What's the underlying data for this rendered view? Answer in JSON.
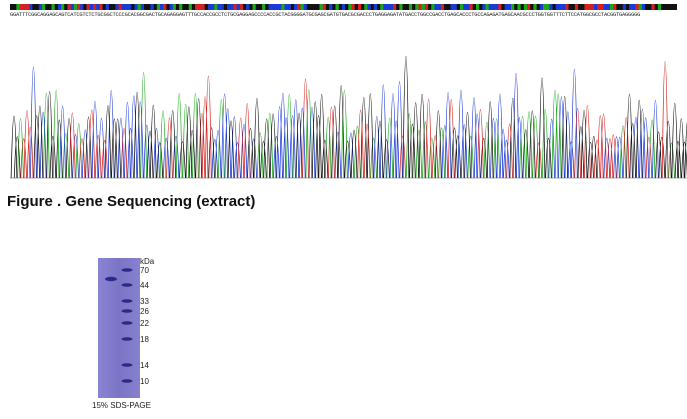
{
  "sequencing": {
    "sequence_text": "GGATTTCGGCAGGAGCAGTCATCGTCTCTGCGGCTCCCGCACGGCGACTGCAGAGGAGTTTGCCACCGCCTCTGCGAGGAGCCCCACCGCTACGGGGATGCGAGCGATGTGACGCGACCCTGAGGAGATATGACCTGGCCGACCTGAGCACCCTGCCAGAGATGAGCAACGCCCTGGTGGTTTCTTCCATGGCGCCTACGGTGAGGGGG",
    "caption": "Figure . Gene Sequencing (extract)",
    "channel_colors": {
      "A": "#18a818",
      "C": "#1a3ad6",
      "G": "#111111",
      "T": "#d42020"
    }
  },
  "gel": {
    "marker_unit": "kDa",
    "markers": [
      "70",
      "44",
      "33",
      "26",
      "22",
      "18",
      "14",
      "10"
    ],
    "label": "15% SDS-PAGE",
    "gel_color": "#7f78c9",
    "band_color": "#2c2a86"
  }
}
